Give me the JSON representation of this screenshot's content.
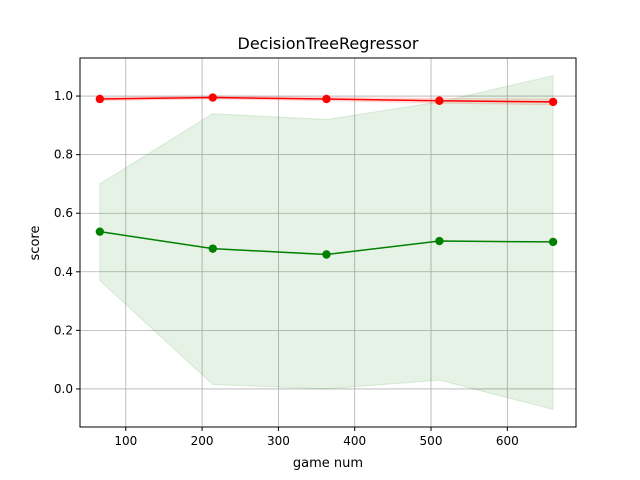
{
  "chart_data": {
    "type": "line",
    "title": "DecisionTreeRegressor",
    "xlabel": "game num",
    "ylabel": "score",
    "xlim": [
      40,
      690
    ],
    "ylim": [
      -0.13,
      1.13
    ],
    "x_ticks": [
      100,
      200,
      300,
      400,
      500,
      600
    ],
    "y_ticks": [
      0.0,
      0.2,
      0.4,
      0.6,
      0.8,
      1.0
    ],
    "x_tick_labels": [
      "100",
      "200",
      "300",
      "400",
      "500",
      "600"
    ],
    "y_tick_labels": [
      "0.0",
      "0.2",
      "0.4",
      "0.6",
      "0.8",
      "1.0"
    ],
    "grid": true,
    "x": [
      66,
      214,
      363,
      511,
      660
    ],
    "series": [
      {
        "color": "#ff0000",
        "band_color": "#ff0000",
        "values": [
          0.99,
          0.995,
          0.99,
          0.984,
          0.98
        ],
        "band_lower": [
          0.985,
          0.99,
          0.984,
          0.976,
          0.97
        ],
        "band_upper": [
          0.995,
          1.0,
          0.996,
          0.992,
          0.99
        ]
      },
      {
        "color": "#008000",
        "band_color": "#008000",
        "values": [
          0.537,
          0.479,
          0.459,
          0.505,
          0.502
        ],
        "band_lower": [
          0.37,
          0.015,
          0.0,
          0.03,
          -0.07
        ],
        "band_upper": [
          0.7,
          0.94,
          0.92,
          0.98,
          1.07
        ]
      }
    ]
  }
}
